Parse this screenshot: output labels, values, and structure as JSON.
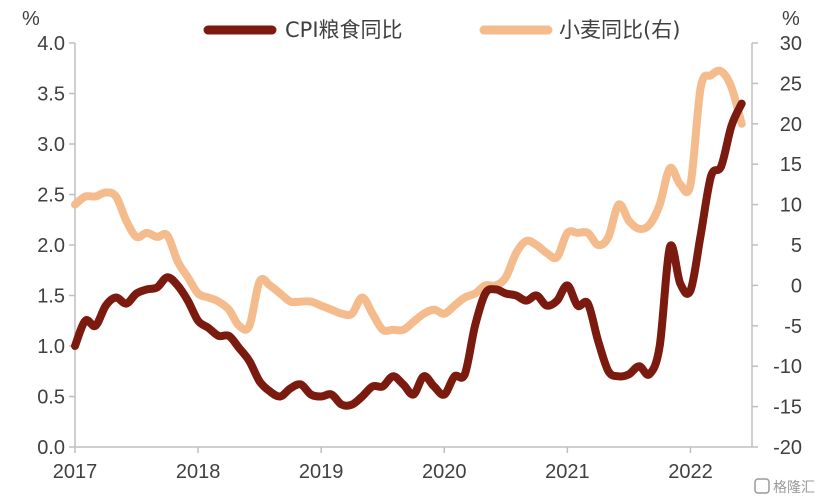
{
  "chart_data": {
    "type": "line",
    "title": "",
    "x_ticks": [
      "2017",
      "2018",
      "2019",
      "2020",
      "2021",
      "2022"
    ],
    "x_range": [
      "2017-01",
      "2022-07"
    ],
    "y_left": {
      "label": "%",
      "min": 0,
      "max": 4,
      "ticks": [
        "0.0",
        "0.5",
        "1.0",
        "1.5",
        "2.0",
        "2.5",
        "3.0",
        "3.5",
        "4.0"
      ]
    },
    "y_right": {
      "label": "%",
      "min": -20,
      "max": 30,
      "ticks": [
        "-20",
        "-15",
        "-10",
        "-5",
        "0",
        "5",
        "10",
        "15",
        "20",
        "25",
        "30"
      ]
    },
    "legend_position": "top",
    "series": [
      {
        "name": "CPI粮食同比",
        "axis": "left",
        "color": "#7b1a0e",
        "points": [
          [
            "2017-01",
            1.0
          ],
          [
            "2017-02",
            1.25
          ],
          [
            "2017-03",
            1.2
          ],
          [
            "2017-04",
            1.4
          ],
          [
            "2017-05",
            1.48
          ],
          [
            "2017-06",
            1.42
          ],
          [
            "2017-07",
            1.52
          ],
          [
            "2017-08",
            1.56
          ],
          [
            "2017-09",
            1.58
          ],
          [
            "2017-10",
            1.68
          ],
          [
            "2017-11",
            1.6
          ],
          [
            "2017-12",
            1.45
          ],
          [
            "2018-01",
            1.25
          ],
          [
            "2018-02",
            1.18
          ],
          [
            "2018-03",
            1.1
          ],
          [
            "2018-04",
            1.1
          ],
          [
            "2018-05",
            0.98
          ],
          [
            "2018-06",
            0.85
          ],
          [
            "2018-07",
            0.65
          ],
          [
            "2018-08",
            0.55
          ],
          [
            "2018-09",
            0.5
          ],
          [
            "2018-10",
            0.58
          ],
          [
            "2018-11",
            0.62
          ],
          [
            "2018-12",
            0.52
          ],
          [
            "2019-01",
            0.5
          ],
          [
            "2019-02",
            0.52
          ],
          [
            "2019-03",
            0.42
          ],
          [
            "2019-04",
            0.42
          ],
          [
            "2019-05",
            0.5
          ],
          [
            "2019-06",
            0.6
          ],
          [
            "2019-07",
            0.6
          ],
          [
            "2019-08",
            0.7
          ],
          [
            "2019-09",
            0.62
          ],
          [
            "2019-10",
            0.52
          ],
          [
            "2019-11",
            0.7
          ],
          [
            "2019-12",
            0.6
          ],
          [
            "2020-01",
            0.52
          ],
          [
            "2020-02",
            0.7
          ],
          [
            "2020-03",
            0.72
          ],
          [
            "2020-04",
            1.2
          ],
          [
            "2020-05",
            1.52
          ],
          [
            "2020-06",
            1.56
          ],
          [
            "2020-07",
            1.52
          ],
          [
            "2020-08",
            1.5
          ],
          [
            "2020-09",
            1.45
          ],
          [
            "2020-10",
            1.5
          ],
          [
            "2020-11",
            1.4
          ],
          [
            "2020-12",
            1.45
          ],
          [
            "2021-01",
            1.6
          ],
          [
            "2021-02",
            1.4
          ],
          [
            "2021-03",
            1.42
          ],
          [
            "2021-04",
            1.05
          ],
          [
            "2021-05",
            0.75
          ],
          [
            "2021-06",
            0.7
          ],
          [
            "2021-07",
            0.72
          ],
          [
            "2021-08",
            0.8
          ],
          [
            "2021-09",
            0.72
          ],
          [
            "2021-10",
            1.0
          ],
          [
            "2021-11",
            1.98
          ],
          [
            "2021-12",
            1.62
          ],
          [
            "2022-01",
            1.55
          ],
          [
            "2022-02",
            2.1
          ],
          [
            "2022-03",
            2.68
          ],
          [
            "2022-04",
            2.78
          ],
          [
            "2022-05",
            3.18
          ],
          [
            "2022-06",
            3.4
          ]
        ]
      },
      {
        "name": "小麦同比(右)",
        "axis": "right",
        "color": "#f4bc8c",
        "points": [
          [
            "2017-01",
            10.0
          ],
          [
            "2017-02",
            11.0
          ],
          [
            "2017-03",
            11.0
          ],
          [
            "2017-04",
            11.5
          ],
          [
            "2017-05",
            11.0
          ],
          [
            "2017-06",
            8.0
          ],
          [
            "2017-07",
            6.0
          ],
          [
            "2017-08",
            6.5
          ],
          [
            "2017-09",
            6.0
          ],
          [
            "2017-10",
            6.2
          ],
          [
            "2017-11",
            3.0
          ],
          [
            "2017-12",
            1.0
          ],
          [
            "2018-01",
            -1.0
          ],
          [
            "2018-02",
            -1.5
          ],
          [
            "2018-03",
            -2.0
          ],
          [
            "2018-04",
            -3.0
          ],
          [
            "2018-05",
            -5.0
          ],
          [
            "2018-06",
            -5.0
          ],
          [
            "2018-07",
            0.5
          ],
          [
            "2018-08",
            0.0
          ],
          [
            "2018-09",
            -1.0
          ],
          [
            "2018-10",
            -2.0
          ],
          [
            "2018-11",
            -2.0
          ],
          [
            "2018-12",
            -2.0
          ],
          [
            "2019-01",
            -2.5
          ],
          [
            "2019-02",
            -3.0
          ],
          [
            "2019-03",
            -3.5
          ],
          [
            "2019-04",
            -3.5
          ],
          [
            "2019-05",
            -1.5
          ],
          [
            "2019-06",
            -3.5
          ],
          [
            "2019-07",
            -5.5
          ],
          [
            "2019-08",
            -5.5
          ],
          [
            "2019-09",
            -5.5
          ],
          [
            "2019-10",
            -4.5
          ],
          [
            "2019-11",
            -3.5
          ],
          [
            "2019-12",
            -3.0
          ],
          [
            "2020-01",
            -3.5
          ],
          [
            "2020-02",
            -2.5
          ],
          [
            "2020-03",
            -1.5
          ],
          [
            "2020-04",
            -1.0
          ],
          [
            "2020-05",
            0.0
          ],
          [
            "2020-06",
            0.0
          ],
          [
            "2020-07",
            1.0
          ],
          [
            "2020-08",
            4.0
          ],
          [
            "2020-09",
            5.5
          ],
          [
            "2020-10",
            5.0
          ],
          [
            "2020-11",
            4.0
          ],
          [
            "2020-12",
            3.5
          ],
          [
            "2021-01",
            6.5
          ],
          [
            "2021-02",
            6.5
          ],
          [
            "2021-03",
            6.5
          ],
          [
            "2021-04",
            5.0
          ],
          [
            "2021-05",
            6.0
          ],
          [
            "2021-06",
            10.0
          ],
          [
            "2021-07",
            8.0
          ],
          [
            "2021-08",
            7.0
          ],
          [
            "2021-09",
            7.5
          ],
          [
            "2021-10",
            10.0
          ],
          [
            "2021-11",
            14.5
          ],
          [
            "2021-12",
            12.5
          ],
          [
            "2022-01",
            12.5
          ],
          [
            "2022-02",
            24.5
          ],
          [
            "2022-03",
            26.0
          ],
          [
            "2022-04",
            26.5
          ],
          [
            "2022-05",
            24.5
          ],
          [
            "2022-06",
            20.0
          ]
        ]
      }
    ]
  },
  "watermark": "格隆汇"
}
